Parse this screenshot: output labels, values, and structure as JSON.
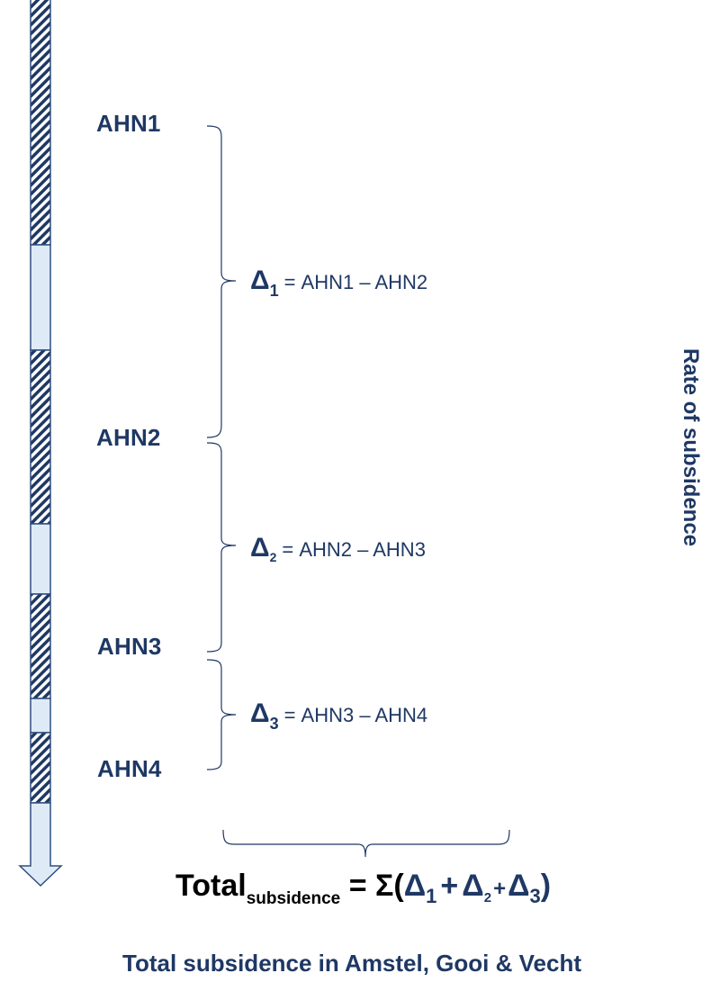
{
  "epochs": [
    "AHN1",
    "AHN2",
    "AHN3",
    "AHN4"
  ],
  "deltas": [
    {
      "symbol": "Δ",
      "index": "1",
      "expression": "= AHN1 – AHN2"
    },
    {
      "symbol": "Δ",
      "index": "2",
      "expression": "= AHN2 – AHN3"
    },
    {
      "symbol": "Δ",
      "index": "3",
      "expression": "= AHN3 – AHN4"
    }
  ],
  "axis_label": "Rate of subsidence",
  "formula": {
    "total": "Total",
    "total_sub": "subsidence",
    "equals_sigma": " = Σ(",
    "d": "Δ",
    "i1": "1",
    "i2": "2",
    "i3": "3",
    "plus": "+",
    "close": ")"
  },
  "caption": "Total subsidence in Amstel, Gooi & Vecht",
  "colors": {
    "navy": "#1f3864",
    "bar_fill": "#deebf7",
    "bar_stroke": "#2f4f7f"
  }
}
